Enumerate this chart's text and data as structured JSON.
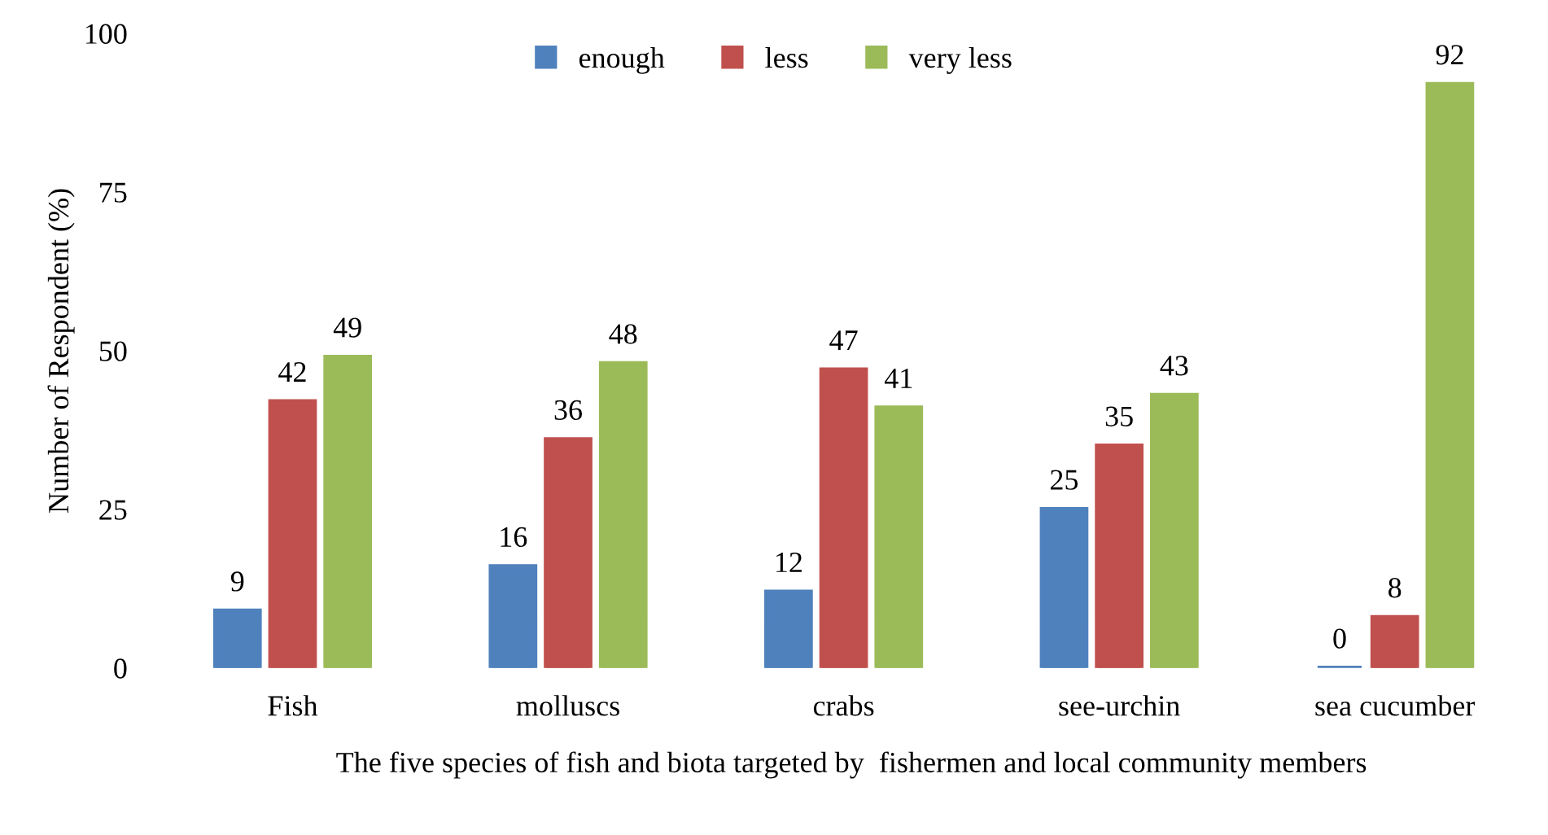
{
  "chart_data": {
    "type": "bar",
    "ylabel": "Number of Respondent (%)",
    "xlabel": "The five species of fish and biota targeted by  fishermen and local community members",
    "categories": [
      "Fish",
      "molluscs",
      "crabs",
      "see-urchin",
      "sea cucumber"
    ],
    "series": [
      {
        "name": "enough",
        "color": "#4f81bd",
        "values": [
          9,
          16,
          12,
          25,
          0
        ]
      },
      {
        "name": "less",
        "color": "#c0504d",
        "values": [
          42,
          36,
          47,
          35,
          8
        ]
      },
      {
        "name": "very less",
        "color": "#9bbb59",
        "values": [
          49,
          48,
          41,
          43,
          92
        ]
      }
    ],
    "ylim": [
      0,
      100
    ],
    "yticks": [
      0,
      25,
      50,
      75,
      100
    ],
    "grid": false,
    "legend": "top",
    "data_labels": true
  }
}
